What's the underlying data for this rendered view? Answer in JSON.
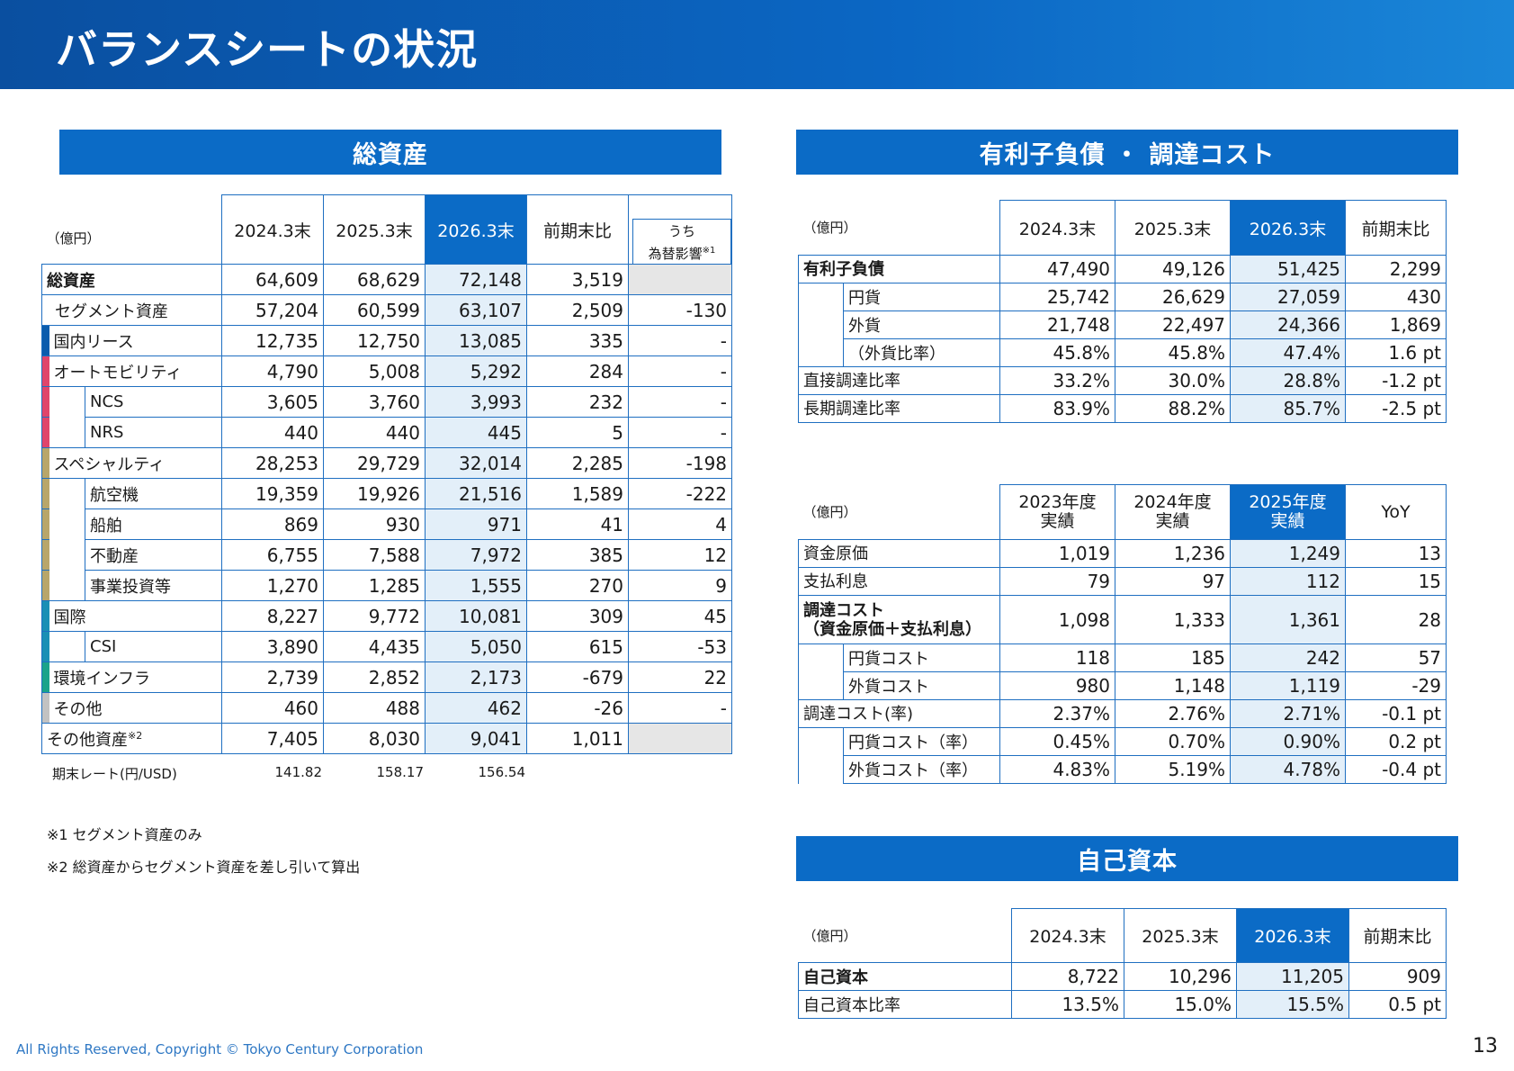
{
  "page": {
    "title": "バランスシートの状況",
    "page_number": "13",
    "copyright": "All Rights Reserved, Copyright © Tokyo Century Corporation"
  },
  "total_assets": {
    "band_title": "総資産",
    "unit": "（億円）",
    "headers": [
      "2024.3末",
      "2025.3末",
      "2026.3末",
      "前期末比"
    ],
    "fx_header_line1": "うち",
    "fx_header_line2": "為替影響",
    "fx_header_sup": "※1",
    "rows": [
      {
        "label": "総資産",
        "values": [
          "64,609",
          "68,629",
          "72,148",
          "3,519",
          ""
        ],
        "bold": true
      },
      {
        "label": "セグメント資産",
        "values": [
          "57,204",
          "60,599",
          "63,107",
          "2,509",
          "-130"
        ]
      },
      {
        "label": "国内リース",
        "values": [
          "12,735",
          "12,750",
          "13,085",
          "335",
          "-"
        ],
        "color": "#0b5cad"
      },
      {
        "label": "オートモビリティ",
        "values": [
          "4,790",
          "5,008",
          "5,292",
          "284",
          "-"
        ],
        "color": "#e0456b"
      },
      {
        "label": "NCS",
        "values": [
          "3,605",
          "3,760",
          "3,993",
          "232",
          "-"
        ],
        "color": "#e0456b"
      },
      {
        "label": "NRS",
        "values": [
          "440",
          "440",
          "445",
          "5",
          "-"
        ],
        "color": "#e0456b"
      },
      {
        "label": "スペシャルティ",
        "values": [
          "28,253",
          "29,729",
          "32,014",
          "2,285",
          "-198"
        ],
        "color": "#b8a66a"
      },
      {
        "label": "航空機",
        "values": [
          "19,359",
          "19,926",
          "21,516",
          "1,589",
          "-222"
        ],
        "color": "#b8a66a"
      },
      {
        "label": "船舶",
        "values": [
          "869",
          "930",
          "971",
          "41",
          "4"
        ],
        "color": "#b8a66a"
      },
      {
        "label": "不動産",
        "values": [
          "6,755",
          "7,588",
          "7,972",
          "385",
          "12"
        ],
        "color": "#b8a66a"
      },
      {
        "label": "事業投資等",
        "values": [
          "1,270",
          "1,285",
          "1,555",
          "270",
          "9"
        ],
        "color": "#b8a66a"
      },
      {
        "label": "国際",
        "values": [
          "8,227",
          "9,772",
          "10,081",
          "309",
          "45"
        ],
        "color": "#1a8fb5"
      },
      {
        "label": "CSI",
        "values": [
          "3,890",
          "4,435",
          "5,050",
          "615",
          "-53"
        ],
        "color": "#1a8fb5"
      },
      {
        "label": "環境インフラ",
        "values": [
          "2,739",
          "2,852",
          "2,173",
          "-679",
          "22"
        ],
        "color": "#1aa38a"
      },
      {
        "label": "その他",
        "values": [
          "460",
          "488",
          "462",
          "-26",
          "-"
        ],
        "color": "#c2c2c2"
      },
      {
        "label": "その他資産",
        "label_sup": "※2",
        "values": [
          "7,405",
          "8,030",
          "9,041",
          "1,011",
          ""
        ]
      }
    ],
    "rate_label": "期末レート(円/USD)",
    "rates": [
      "141.82",
      "158.17",
      "156.54"
    ],
    "note1": "※1 セグメント資産のみ",
    "note2": "※2 総資産からセグメント資産を差し引いて算出"
  },
  "debt": {
    "band_title": "有利子負債 ・ 調達コスト",
    "unit": "（億円）",
    "headers": [
      "2024.3末",
      "2025.3末",
      "2026.3末",
      "前期末比"
    ],
    "rows": [
      {
        "label": "有利子負債",
        "values": [
          "47,490",
          "49,126",
          "51,425",
          "2,299"
        ],
        "bold": true
      },
      {
        "label": "円貨",
        "values": [
          "25,742",
          "26,629",
          "27,059",
          "430"
        ]
      },
      {
        "label": "外貨",
        "values": [
          "21,748",
          "22,497",
          "24,366",
          "1,869"
        ]
      },
      {
        "label": "（外貨比率）",
        "values": [
          "45.8%",
          "45.8%",
          "47.4%",
          "1.6 pt"
        ]
      },
      {
        "label": "直接調達比率",
        "values": [
          "33.2%",
          "30.0%",
          "28.8%",
          "-1.2 pt"
        ]
      },
      {
        "label": "長期調達比率",
        "values": [
          "83.9%",
          "88.2%",
          "85.7%",
          "-2.5 pt"
        ]
      }
    ]
  },
  "cost": {
    "unit": "（億円）",
    "headers": [
      {
        "line1": "2023年度",
        "line2": "実績"
      },
      {
        "line1": "2024年度",
        "line2": "実績"
      },
      {
        "line1": "2025年度",
        "line2": "実績"
      },
      {
        "line1": "YoY",
        "line2": ""
      }
    ],
    "rows": [
      {
        "label": "資金原価",
        "values": [
          "1,019",
          "1,236",
          "1,249",
          "13"
        ]
      },
      {
        "label": "支払利息",
        "values": [
          "79",
          "97",
          "112",
          "15"
        ]
      },
      {
        "label": "調達コスト",
        "label2": "（資金原価＋支払利息）",
        "values": [
          "1,098",
          "1,333",
          "1,361",
          "28"
        ],
        "bold": true
      },
      {
        "label": "円貨コスト",
        "values": [
          "118",
          "185",
          "242",
          "57"
        ]
      },
      {
        "label": "外貨コスト",
        "values": [
          "980",
          "1,148",
          "1,119",
          "-29"
        ]
      },
      {
        "label": "調達コスト(率)",
        "values": [
          "2.37%",
          "2.76%",
          "2.71%",
          "-0.1 pt"
        ]
      },
      {
        "label": "円貨コスト（率）",
        "values": [
          "0.45%",
          "0.70%",
          "0.90%",
          "0.2 pt"
        ]
      },
      {
        "label": "外貨コスト（率）",
        "values": [
          "4.83%",
          "5.19%",
          "4.78%",
          "-0.4 pt"
        ]
      }
    ]
  },
  "equity": {
    "band_title": "自己資本",
    "unit": "（億円）",
    "headers": [
      "2024.3末",
      "2025.3末",
      "2026.3末",
      "前期末比"
    ],
    "rows": [
      {
        "label": "自己資本",
        "values": [
          "8,722",
          "10,296",
          "11,205",
          "909"
        ],
        "bold": true
      },
      {
        "label": "自己資本比率",
        "values": [
          "13.5%",
          "15.0%",
          "15.5%",
          "0.5 pt"
        ]
      }
    ]
  }
}
